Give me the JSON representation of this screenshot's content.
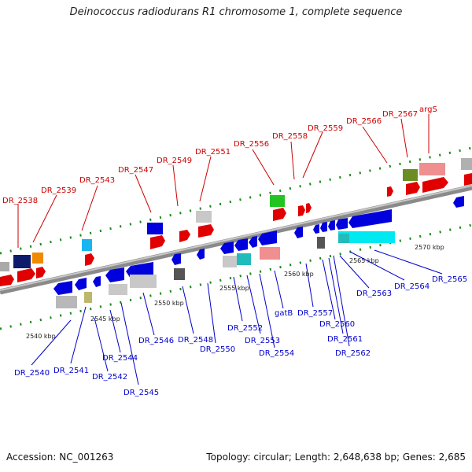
{
  "title": "Deinococcus radiodurans R1 chromosome 1, complete sequence",
  "footer": {
    "accession": "Accession: NC_001263",
    "summary": "Topology: circular; Length: 2,648,638 bp; Genes: 2,685"
  },
  "colors": {
    "top_label": "#cc0000",
    "bottom_label": "#0000cc",
    "backbone": "#8a8a8a"
  },
  "scale_labels": [
    "2540 kbp",
    "2545 kbp",
    "2550 kbp",
    "2555 kbp",
    "2560 kbp",
    "2565 kbp",
    "2570 kbp"
  ],
  "top_labels": [
    "DR_2538",
    "DR_2539",
    "DR_2543",
    "DR_2547",
    "DR_2549",
    "DR_2551",
    "DR_2556",
    "DR_2558",
    "DR_2559",
    "DR_2566",
    "DR_2567",
    "argS"
  ],
  "bottom_labels": [
    "DR_2540",
    "DR_2541",
    "DR_2542",
    "DR_2544",
    "DR_2545",
    "DR_2546",
    "DR_2548",
    "DR_2550",
    "DR_2552",
    "DR_2553",
    "DR_2554",
    "gatB",
    "DR_2557",
    "DR_2560",
    "DR_2561",
    "DR_2562",
    "DR_2563",
    "DR_2564",
    "DR_2565"
  ]
}
